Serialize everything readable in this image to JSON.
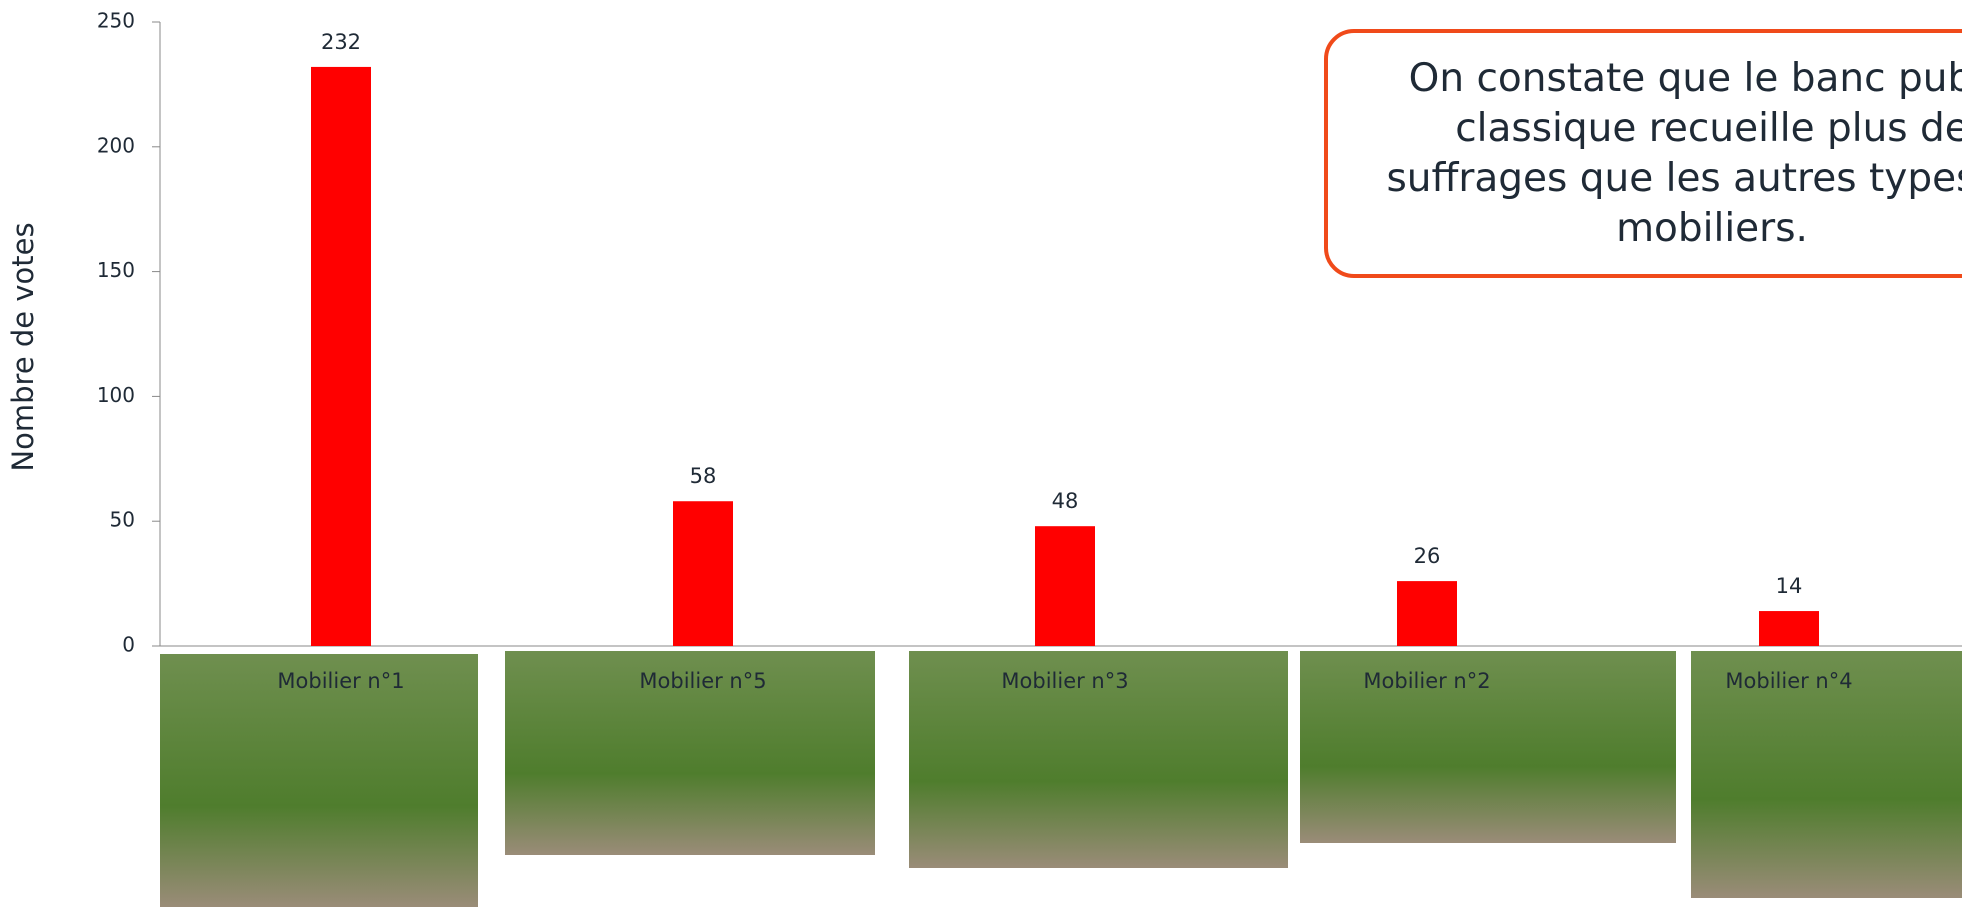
{
  "chart_data": {
    "type": "bar",
    "y_label": "Nombre de votes",
    "categories": [
      "Mobilier n°1",
      "Mobilier n°5",
      "Mobilier n°3",
      "Mobilier n°2",
      "Mobilier n°4"
    ],
    "values": [
      232,
      58,
      48,
      26,
      14
    ],
    "color": "#ff0000",
    "ylim": [
      0,
      250
    ],
    "yticks": [
      0,
      50,
      100,
      150,
      200,
      250
    ],
    "grid": false,
    "annotation": [
      "On constate que le banc public",
      "classique recueille plus de",
      "suffrages que les autres types de",
      "mobiliers."
    ]
  }
}
